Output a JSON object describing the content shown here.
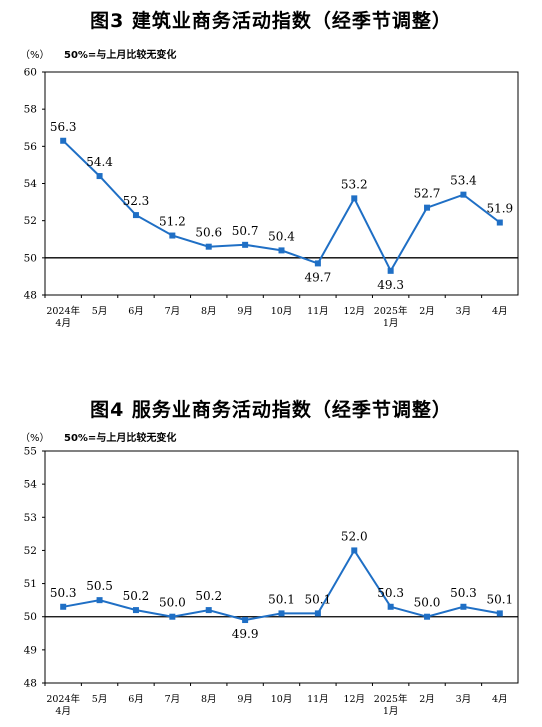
{
  "charts": [
    {
      "title": "图3  建筑业商务活动指数（经季节调整）",
      "unit": "（%）",
      "note": "50%=与上月比较无变化",
      "chart_data": {
        "type": "line",
        "categories": [
          "2024年\n4月",
          "5月",
          "6月",
          "7月",
          "8月",
          "9月",
          "10月",
          "11月",
          "12月",
          "2025年\n1月",
          "2月",
          "3月",
          "4月"
        ],
        "values": [
          56.3,
          54.4,
          52.3,
          51.2,
          50.6,
          50.7,
          50.4,
          49.7,
          53.2,
          49.3,
          52.7,
          53.4,
          51.9
        ],
        "data_labels": [
          "56.3",
          "54.4",
          "52.3",
          "51.2",
          "50.6",
          "50.7",
          "50.4",
          "49.7",
          "53.2",
          "49.3",
          "52.7",
          "53.4",
          "51.9"
        ],
        "yticks": [
          "48",
          "50",
          "52",
          "54",
          "56",
          "58",
          "60"
        ],
        "ylim": [
          48,
          60
        ],
        "reference_line": 50,
        "color": "#1f6fc5"
      }
    },
    {
      "title": "图4  服务业商务活动指数（经季节调整）",
      "unit": "（%）",
      "note": "50%=与上月比较无变化",
      "chart_data": {
        "type": "line",
        "categories": [
          "2024年\n4月",
          "5月",
          "6月",
          "7月",
          "8月",
          "9月",
          "10月",
          "11月",
          "12月",
          "2025年\n1月",
          "2月",
          "3月",
          "4月"
        ],
        "values": [
          50.3,
          50.5,
          50.2,
          50.0,
          50.2,
          49.9,
          50.1,
          50.1,
          52.0,
          50.3,
          50.0,
          50.3,
          50.1
        ],
        "data_labels": [
          "50.3",
          "50.5",
          "50.2",
          "50.0",
          "50.2",
          "49.9",
          "50.1",
          "50.1",
          "52.0",
          "50.3",
          "50.0",
          "50.3",
          "50.1"
        ],
        "yticks": [
          "48",
          "49",
          "50",
          "51",
          "52",
          "53",
          "54",
          "55"
        ],
        "ylim": [
          48,
          55
        ],
        "reference_line": 50,
        "color": "#1f6fc5"
      }
    }
  ]
}
